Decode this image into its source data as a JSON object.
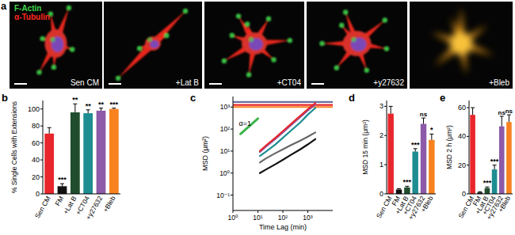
{
  "panel_a": {
    "panel": "a",
    "stains": [
      {
        "text": "F-Actin",
        "color": "#3fd44a"
      },
      {
        "text": "α-Tubulin",
        "color": "#ff2a1f"
      }
    ],
    "images": [
      "Sen CM",
      "+Lat B",
      "+CT04",
      "+y27632",
      "+Bleb"
    ]
  },
  "chart_data": [
    {
      "panel": "b",
      "type": "bar",
      "categories": [
        "Sen CM",
        "FM",
        "+Lat B",
        "+CT04",
        "+y27632",
        "+Bleb"
      ],
      "values": [
        71,
        9,
        96,
        95,
        98,
        100
      ],
      "errors": [
        7,
        3,
        10,
        4,
        3,
        1
      ],
      "colors": [
        "#e8262b",
        "#111111",
        "#1f4d2e",
        "#1d8d91",
        "#8c5aa8",
        "#f7821f"
      ],
      "significance": [
        null,
        "***",
        "**",
        "**",
        "**",
        "***"
      ],
      "y_label": "% Single Cells with Extensions",
      "ylim": [
        0,
        110
      ],
      "yticks": [
        0,
        20,
        40,
        60,
        80,
        100
      ]
    },
    {
      "panel": "c",
      "type": "line",
      "log": true,
      "x_label": "Time Lag (min)",
      "y_label": "MSD (μm²)",
      "xlim": [
        1,
        10000
      ],
      "ylim": [
        0.02,
        3000
      ],
      "xticks": [
        {
          "value": 1,
          "label": "10⁰"
        },
        {
          "value": 10,
          "label": "10¹"
        },
        {
          "value": 100,
          "label": "10²"
        },
        {
          "value": 1000,
          "label": "10³"
        }
      ],
      "yticks": [
        {
          "value": 0.1,
          "label": "10⁻¹"
        },
        {
          "value": 1,
          "label": "10⁰"
        },
        {
          "value": 10,
          "label": "10¹"
        },
        {
          "value": 100,
          "label": "10²"
        },
        {
          "value": 1000,
          "label": "10³"
        }
      ],
      "series": [
        {
          "color": "#6b6f9e",
          "x": [
            1,
            10000
          ],
          "values": [
            1700,
            1700
          ]
        },
        {
          "color": "#e8262b",
          "x": [
            1,
            10000
          ],
          "values": [
            1250,
            1250
          ]
        },
        {
          "color": "#f7821f",
          "x": [
            1,
            10000
          ],
          "values": [
            1000,
            1000
          ]
        },
        {
          "name": "α=1",
          "color": "#3cb44b",
          "x": [
            2,
            10
          ],
          "values": [
            60,
            300
          ]
        },
        {
          "color": "#111111",
          "x": [
            12,
            20,
            50,
            100,
            200,
            500,
            1000,
            2000
          ],
          "values": [
            1.0,
            1.4,
            2.5,
            4,
            6.5,
            12,
            20,
            35
          ]
        },
        {
          "color": "#666666",
          "x": [
            12,
            20,
            50,
            100,
            200,
            500,
            1000,
            2000
          ],
          "values": [
            3,
            4.5,
            8,
            12,
            18,
            30,
            45,
            70
          ]
        },
        {
          "color": "#1d8d91",
          "x": [
            12,
            20,
            50,
            100,
            200,
            500,
            1000,
            2000
          ],
          "values": [
            6,
            9,
            20,
            40,
            80,
            200,
            450,
            900
          ]
        },
        {
          "color": "#8c5aa8",
          "x": [
            12,
            20,
            50,
            100,
            200,
            500,
            1000,
            2000
          ],
          "values": [
            9,
            15,
            35,
            70,
            140,
            350,
            700,
            1300
          ]
        },
        {
          "color": "#e8262b",
          "x": [
            12,
            20,
            50,
            100,
            200,
            500,
            1000,
            2000
          ],
          "values": [
            10,
            17,
            40,
            80,
            160,
            400,
            800,
            1500
          ]
        }
      ]
    },
    {
      "panel": "d",
      "type": "bar",
      "categories": [
        "Sen CM",
        "FM",
        "+Lat B",
        "+CT04",
        "+y27632",
        "+Bleb"
      ],
      "values": [
        2.75,
        0.15,
        0.22,
        1.45,
        2.4,
        1.85
      ],
      "errors": [
        0.25,
        0.03,
        0.04,
        0.1,
        0.2,
        0.2
      ],
      "colors": [
        "#e8262b",
        "#111111",
        "#1f4d2e",
        "#1d8d91",
        "#8c5aa8",
        "#f7821f"
      ],
      "significance": [
        null,
        null,
        "***",
        "***",
        "ns",
        "*"
      ],
      "y_label": "MSD 15 min (μm²)",
      "ylim": [
        0,
        3.2
      ],
      "yticks": [
        0,
        1,
        2,
        3
      ]
    },
    {
      "panel": "e",
      "type": "bar",
      "categories": [
        "Sen CM",
        "FM",
        "+Lat B",
        "+CT04",
        "+y27632",
        "+Bleb"
      ],
      "values": [
        55,
        1,
        4,
        17,
        47,
        50
      ],
      "errors": [
        5,
        0.5,
        0.8,
        3,
        7,
        5
      ],
      "colors": [
        "#e8262b",
        "#111111",
        "#1f4d2e",
        "#1d8d91",
        "#8c5aa8",
        "#f7821f"
      ],
      "significance": [
        null,
        null,
        "***",
        "***",
        "ns",
        "ns"
      ],
      "y_label": "MSD 2 h (μm²)",
      "ylim": [
        0,
        65
      ],
      "yticks": [
        0,
        20,
        40,
        60
      ]
    }
  ]
}
